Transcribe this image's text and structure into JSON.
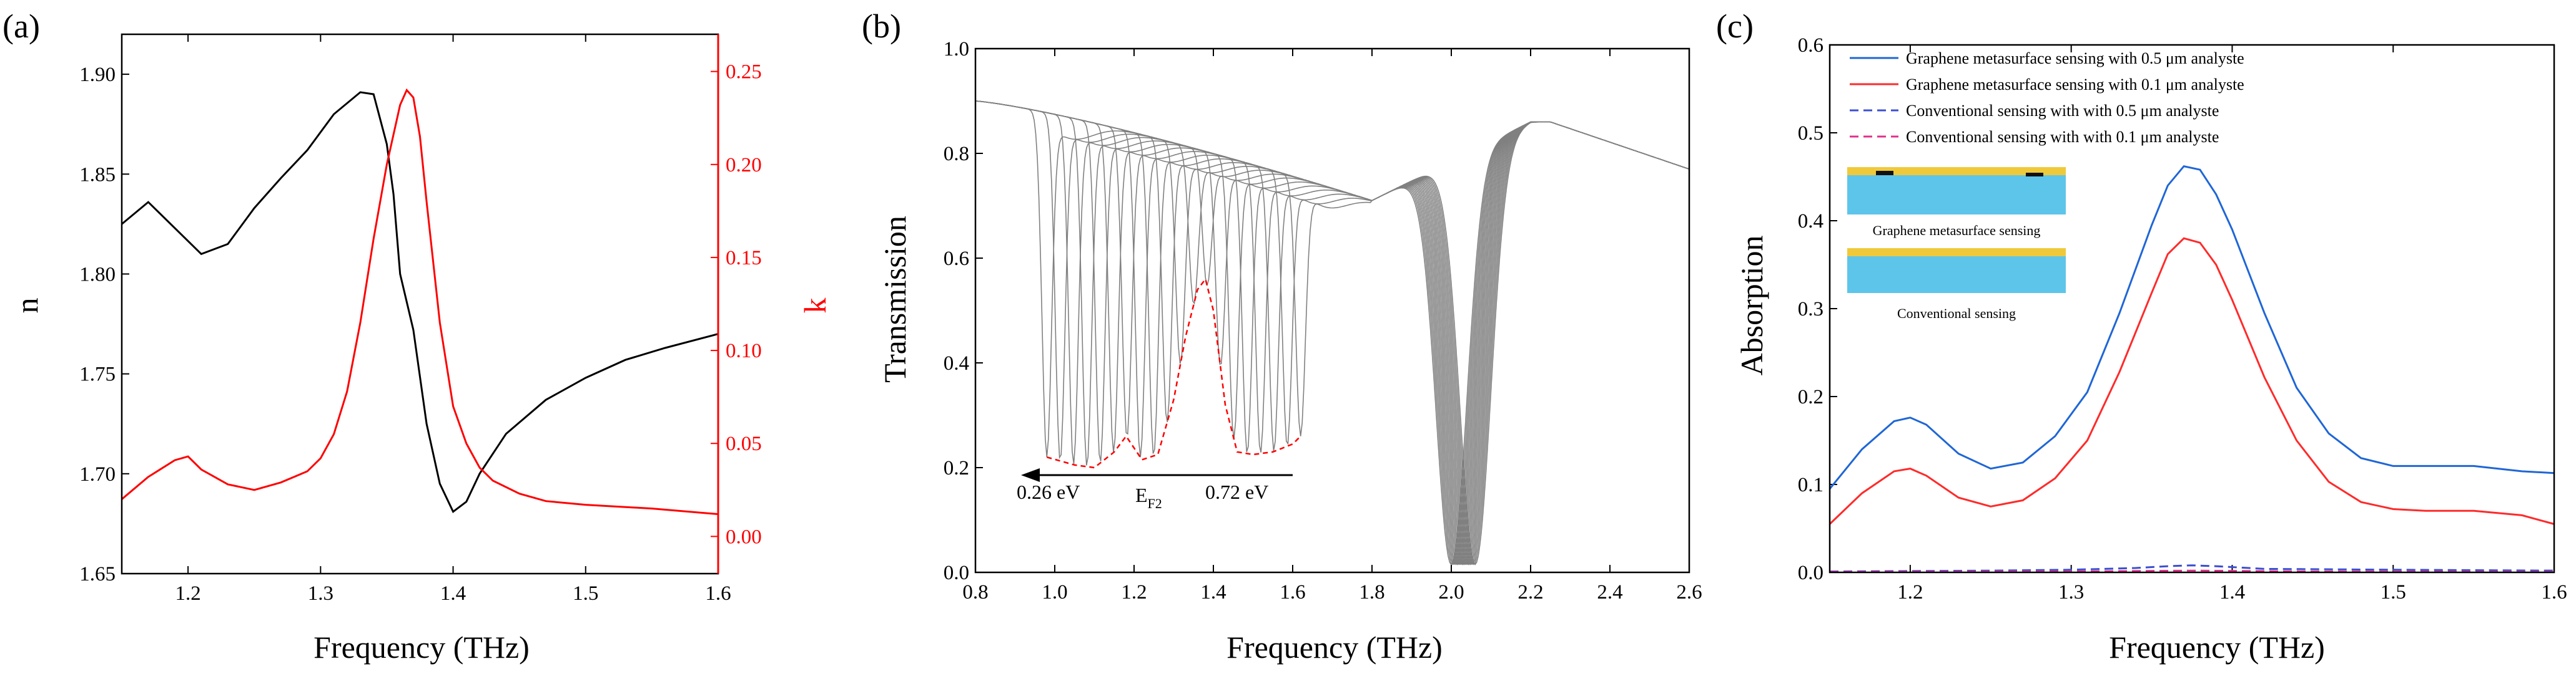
{
  "figure": {
    "panel_labels": [
      "(a)",
      "(b)",
      "(c)"
    ]
  },
  "chart_data": [
    {
      "type": "line",
      "panel": "(a)",
      "title": "",
      "xlabel": "Frequency (THz)",
      "ylabel": "n",
      "ylabel_right": "k",
      "xlim": [
        1.15,
        1.6
      ],
      "ylim": [
        1.65,
        1.92
      ],
      "ylim_right": [
        -0.02,
        0.27
      ],
      "xticks": [
        "1.2",
        "1.3",
        "1.4",
        "1.5",
        "1.6"
      ],
      "yticks": [
        "1.65",
        "1.70",
        "1.75",
        "1.80",
        "1.85",
        "1.90"
      ],
      "yticks_right": [
        "0.00",
        "0.05",
        "0.10",
        "0.15",
        "0.20",
        "0.25"
      ],
      "colors": {
        "n": "#000000",
        "k": "#ff0000"
      },
      "series": [
        {
          "name": "n",
          "axis": "left",
          "color": "#000000",
          "x": [
            1.15,
            1.17,
            1.19,
            1.21,
            1.23,
            1.25,
            1.27,
            1.29,
            1.31,
            1.33,
            1.34,
            1.35,
            1.355,
            1.36,
            1.37,
            1.38,
            1.39,
            1.4,
            1.41,
            1.42,
            1.44,
            1.47,
            1.5,
            1.53,
            1.56,
            1.6
          ],
          "values": [
            1.825,
            1.836,
            1.823,
            1.81,
            1.815,
            1.833,
            1.848,
            1.862,
            1.88,
            1.891,
            1.89,
            1.865,
            1.84,
            1.8,
            1.772,
            1.725,
            1.695,
            1.681,
            1.686,
            1.7,
            1.72,
            1.737,
            1.748,
            1.757,
            1.763,
            1.77
          ]
        },
        {
          "name": "k",
          "axis": "right",
          "color": "#ff0000",
          "x": [
            1.15,
            1.17,
            1.19,
            1.2,
            1.21,
            1.23,
            1.25,
            1.27,
            1.29,
            1.3,
            1.31,
            1.32,
            1.33,
            1.34,
            1.35,
            1.36,
            1.365,
            1.37,
            1.375,
            1.38,
            1.39,
            1.4,
            1.41,
            1.42,
            1.43,
            1.45,
            1.47,
            1.5,
            1.55,
            1.6
          ],
          "values": [
            0.02,
            0.032,
            0.041,
            0.043,
            0.036,
            0.028,
            0.025,
            0.029,
            0.035,
            0.042,
            0.055,
            0.078,
            0.115,
            0.16,
            0.2,
            0.232,
            0.24,
            0.236,
            0.215,
            0.18,
            0.115,
            0.07,
            0.05,
            0.037,
            0.03,
            0.023,
            0.019,
            0.017,
            0.015,
            0.012
          ]
        }
      ]
    },
    {
      "type": "line",
      "panel": "(b)",
      "title": "",
      "xlabel": "Frequency (THz)",
      "ylabel": "Transmission",
      "xlim": [
        0.8,
        2.6
      ],
      "ylim": [
        0.0,
        1.0
      ],
      "xticks": [
        "0.8",
        "1.0",
        "1.2",
        "1.4",
        "1.6",
        "1.8",
        "2.0",
        "2.2",
        "2.4",
        "2.6"
      ],
      "yticks": [
        "0.0",
        "0.2",
        "0.4",
        "0.6",
        "0.8",
        "1.0"
      ],
      "sweep": {
        "variable": "E_F2",
        "count": 20,
        "from": "0.26 eV",
        "to": "0.72 eV",
        "low_dip_freq_range_thz": [
          0.98,
          1.62
        ],
        "main_dip_freq_range_thz": [
          2.0,
          2.06
        ],
        "color": "#808080"
      },
      "envelope": {
        "name": "dip envelope",
        "color": "#ff0000",
        "style": "dashed",
        "x": [
          0.98,
          1.05,
          1.1,
          1.15,
          1.18,
          1.22,
          1.26,
          1.3,
          1.33,
          1.36,
          1.38,
          1.4,
          1.43,
          1.46,
          1.5,
          1.55,
          1.6,
          1.62
        ],
        "values": [
          0.22,
          0.205,
          0.2,
          0.23,
          0.26,
          0.215,
          0.225,
          0.33,
          0.45,
          0.54,
          0.56,
          0.5,
          0.32,
          0.23,
          0.225,
          0.23,
          0.245,
          0.26
        ]
      },
      "annotations": {
        "left": "0.26 eV",
        "right": "0.72 eV",
        "middle": "E",
        "middle_sub": "F2"
      }
    },
    {
      "type": "line",
      "panel": "(c)",
      "title": "",
      "xlabel": "Frequency (THz)",
      "ylabel": "Absorption",
      "xlim": [
        1.15,
        1.6
      ],
      "ylim": [
        0.0,
        0.6
      ],
      "xticks": [
        "1.2",
        "1.3",
        "1.4",
        "1.5",
        "1.6"
      ],
      "yticks": [
        "0.0",
        "0.1",
        "0.2",
        "0.3",
        "0.4",
        "0.5",
        "0.6"
      ],
      "legend_placement": "top-left",
      "series": [
        {
          "name": "Graphene metasurface sensing with 0.5 μm analyste",
          "color": "#1f66d6",
          "style": "solid",
          "x": [
            1.15,
            1.17,
            1.19,
            1.2,
            1.21,
            1.23,
            1.25,
            1.27,
            1.29,
            1.31,
            1.33,
            1.35,
            1.36,
            1.37,
            1.38,
            1.39,
            1.4,
            1.42,
            1.44,
            1.46,
            1.48,
            1.5,
            1.52,
            1.55,
            1.58,
            1.6
          ],
          "values": [
            0.095,
            0.14,
            0.172,
            0.176,
            0.168,
            0.135,
            0.118,
            0.125,
            0.155,
            0.205,
            0.295,
            0.395,
            0.44,
            0.462,
            0.458,
            0.43,
            0.39,
            0.295,
            0.21,
            0.158,
            0.13,
            0.121,
            0.121,
            0.121,
            0.115,
            0.113
          ]
        },
        {
          "name": "Graphene metasurface sensing with 0.1 μm analyste",
          "color": "#ff2a2a",
          "style": "solid",
          "x": [
            1.15,
            1.17,
            1.19,
            1.2,
            1.21,
            1.23,
            1.25,
            1.27,
            1.29,
            1.31,
            1.33,
            1.35,
            1.36,
            1.37,
            1.38,
            1.39,
            1.4,
            1.42,
            1.44,
            1.46,
            1.48,
            1.5,
            1.52,
            1.55,
            1.58,
            1.6
          ],
          "values": [
            0.055,
            0.09,
            0.115,
            0.118,
            0.11,
            0.085,
            0.075,
            0.082,
            0.107,
            0.15,
            0.228,
            0.318,
            0.362,
            0.38,
            0.375,
            0.35,
            0.31,
            0.222,
            0.15,
            0.103,
            0.08,
            0.072,
            0.07,
            0.07,
            0.065,
            0.055
          ]
        },
        {
          "name": "Conventional sensing with with 0.5 μm analyste",
          "color": "#3b4fd0",
          "style": "dashed",
          "x": [
            1.15,
            1.25,
            1.3,
            1.34,
            1.36,
            1.375,
            1.39,
            1.42,
            1.5,
            1.6
          ],
          "values": [
            0.001,
            0.002,
            0.003,
            0.005,
            0.007,
            0.008,
            0.007,
            0.004,
            0.003,
            0.002
          ]
        },
        {
          "name": "Conventional sensing with with 0.1 μm analyste",
          "color": "#e0308a",
          "style": "dashed",
          "x": [
            1.15,
            1.3,
            1.375,
            1.45,
            1.6
          ],
          "values": [
            0.0005,
            0.001,
            0.002,
            0.001,
            0.0005
          ]
        }
      ],
      "inset": {
        "labels": [
          "Graphene metasurface sensing",
          "Conventional sensing"
        ],
        "colors": {
          "substrate": "#5ec5ea",
          "analyte": "#f0c93a",
          "graphene": "#111111"
        }
      }
    }
  ]
}
